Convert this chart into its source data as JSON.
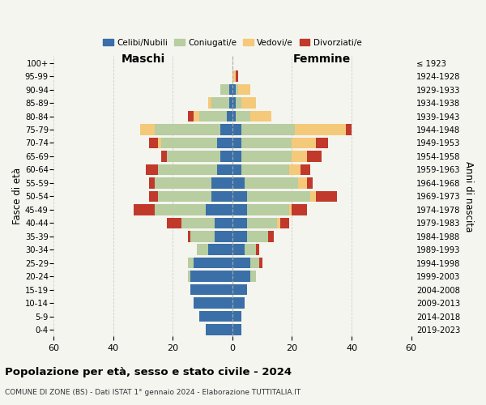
{
  "age_groups": [
    "0-4",
    "5-9",
    "10-14",
    "15-19",
    "20-24",
    "25-29",
    "30-34",
    "35-39",
    "40-44",
    "45-49",
    "50-54",
    "55-59",
    "60-64",
    "65-69",
    "70-74",
    "75-79",
    "80-84",
    "85-89",
    "90-94",
    "95-99",
    "100+"
  ],
  "birth_years": [
    "2019-2023",
    "2014-2018",
    "2009-2013",
    "2004-2008",
    "1999-2003",
    "1994-1998",
    "1989-1993",
    "1984-1988",
    "1979-1983",
    "1974-1978",
    "1969-1973",
    "1964-1968",
    "1959-1963",
    "1954-1958",
    "1949-1953",
    "1944-1948",
    "1939-1943",
    "1934-1938",
    "1929-1933",
    "1924-1928",
    "≤ 1923"
  ],
  "maschi": {
    "celibi": [
      9,
      11,
      13,
      14,
      14,
      13,
      8,
      6,
      6,
      9,
      7,
      7,
      5,
      4,
      5,
      4,
      2,
      1,
      1,
      0,
      0
    ],
    "coniugati": [
      0,
      0,
      0,
      0,
      1,
      2,
      4,
      8,
      11,
      17,
      18,
      19,
      20,
      18,
      19,
      22,
      9,
      6,
      3,
      0,
      0
    ],
    "vedovi": [
      0,
      0,
      0,
      0,
      0,
      0,
      0,
      0,
      0,
      0,
      0,
      0,
      0,
      0,
      1,
      5,
      2,
      1,
      0,
      0,
      0
    ],
    "divorziati": [
      0,
      0,
      0,
      0,
      0,
      0,
      0,
      1,
      5,
      7,
      3,
      2,
      4,
      2,
      3,
      0,
      2,
      0,
      0,
      0,
      0
    ]
  },
  "femmine": {
    "nubili": [
      3,
      3,
      4,
      5,
      6,
      6,
      4,
      5,
      5,
      5,
      5,
      4,
      3,
      3,
      3,
      3,
      1,
      1,
      1,
      0,
      0
    ],
    "coniugate": [
      0,
      0,
      0,
      0,
      2,
      3,
      4,
      7,
      10,
      14,
      21,
      18,
      16,
      17,
      17,
      18,
      5,
      2,
      1,
      0,
      0
    ],
    "vedove": [
      0,
      0,
      0,
      0,
      0,
      0,
      0,
      0,
      1,
      1,
      2,
      3,
      4,
      5,
      8,
      17,
      7,
      5,
      4,
      1,
      0
    ],
    "divorziate": [
      0,
      0,
      0,
      0,
      0,
      1,
      1,
      2,
      3,
      5,
      7,
      2,
      3,
      5,
      4,
      2,
      0,
      0,
      0,
      1,
      0
    ]
  },
  "colors": {
    "celibi": "#3a6fa8",
    "coniugati": "#b8cda0",
    "vedovi": "#f5c97a",
    "divorziati": "#c0392b"
  },
  "xlim": 60,
  "title": "Popolazione per età, sesso e stato civile - 2024",
  "subtitle": "COMUNE DI ZONE (BS) - Dati ISTAT 1° gennaio 2024 - Elaborazione TUTTITALIA.IT",
  "xlabel_left": "Maschi",
  "xlabel_right": "Femmine",
  "ylabel_left": "Fasce di età",
  "ylabel_right": "Anni di nascita",
  "bg_color": "#f5f5f0",
  "grid_color": "#cccccc"
}
